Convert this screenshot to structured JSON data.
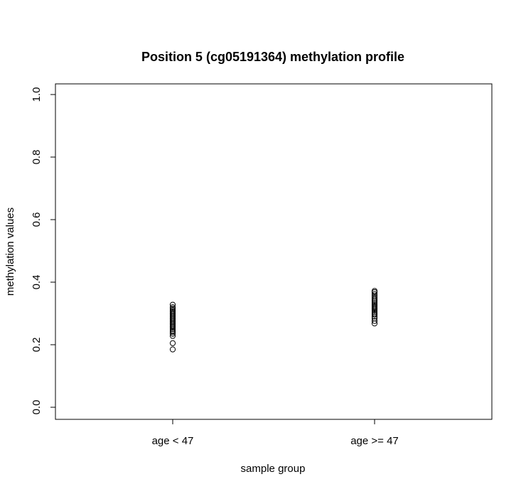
{
  "chart_data": {
    "type": "scatter",
    "title": "Position 5 (cg05191364) methylation profile",
    "xlabel": "sample group",
    "ylabel": "methylation values",
    "categories": [
      "age < 47",
      "age >= 47"
    ],
    "ylim": [
      0,
      1
    ],
    "yticks": [
      "0.0",
      "0.2",
      "0.4",
      "0.6",
      "0.8",
      "1.0"
    ],
    "grid": false,
    "legend": "none",
    "point_style": "open-circle",
    "series": [
      {
        "values": [
          0.185,
          0.205,
          0.228,
          0.235,
          0.24,
          0.245,
          0.25,
          0.255,
          0.258,
          0.262,
          0.266,
          0.27,
          0.274,
          0.278,
          0.282,
          0.286,
          0.29,
          0.294,
          0.298,
          0.302,
          0.306,
          0.31,
          0.315,
          0.32,
          0.328
        ]
      },
      {
        "values": [
          0.268,
          0.276,
          0.284,
          0.29,
          0.296,
          0.3,
          0.305,
          0.31,
          0.314,
          0.318,
          0.322,
          0.326,
          0.33,
          0.335,
          0.34,
          0.345,
          0.35,
          0.356,
          0.362,
          0.368,
          0.372
        ]
      }
    ]
  }
}
